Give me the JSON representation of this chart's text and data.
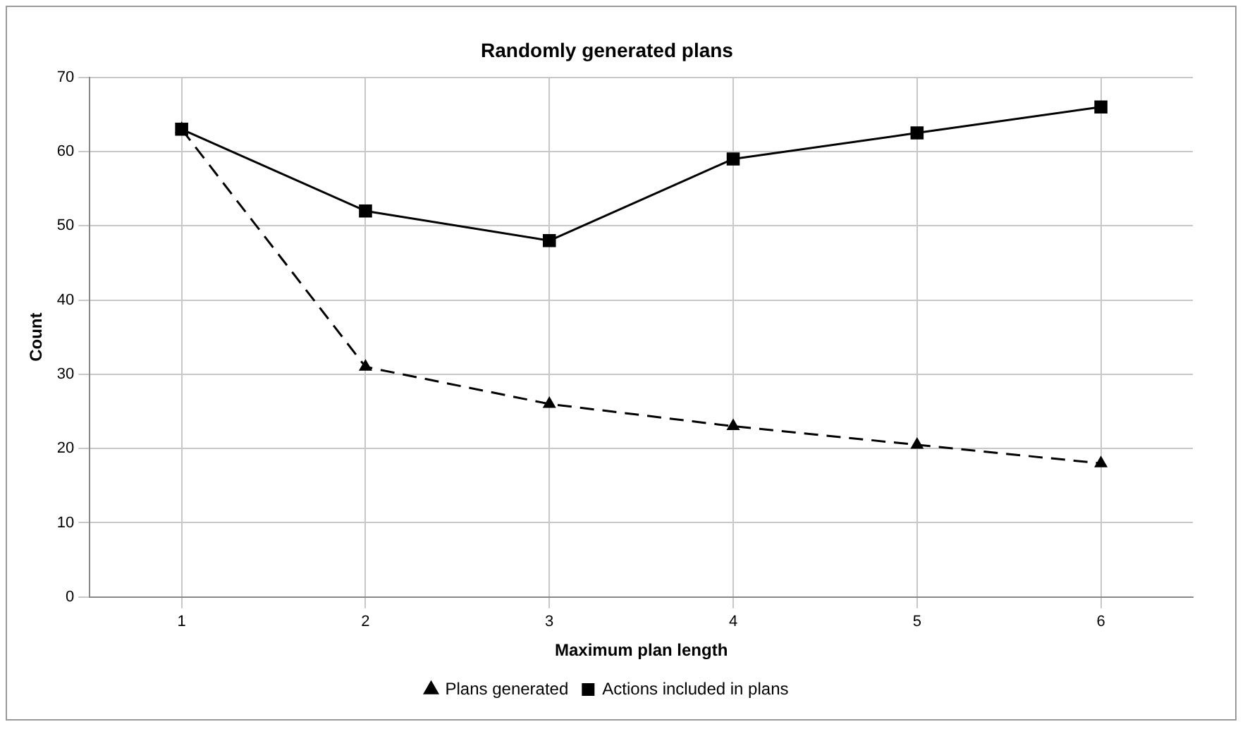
{
  "chart_data": {
    "type": "line",
    "title": "Randomly generated plans",
    "xlabel": "Maximum plan length",
    "ylabel": "Count",
    "categories": [
      "1",
      "2",
      "3",
      "4",
      "5",
      "6"
    ],
    "series": [
      {
        "name": "Plans generated",
        "color": "#000000",
        "values": [
          63,
          31,
          26,
          23,
          20.5,
          18
        ],
        "marker": "triangle",
        "line_style": "dashed"
      },
      {
        "name": "Actions included in plans",
        "color": "#000000",
        "values": [
          63,
          52,
          48,
          59,
          62.5,
          66
        ],
        "marker": "square",
        "line_style": "solid"
      }
    ],
    "ylim": [
      0,
      70
    ],
    "yticks": [
      0,
      10,
      20,
      30,
      40,
      50,
      60,
      70
    ],
    "grid": true,
    "legend": "bottom"
  }
}
